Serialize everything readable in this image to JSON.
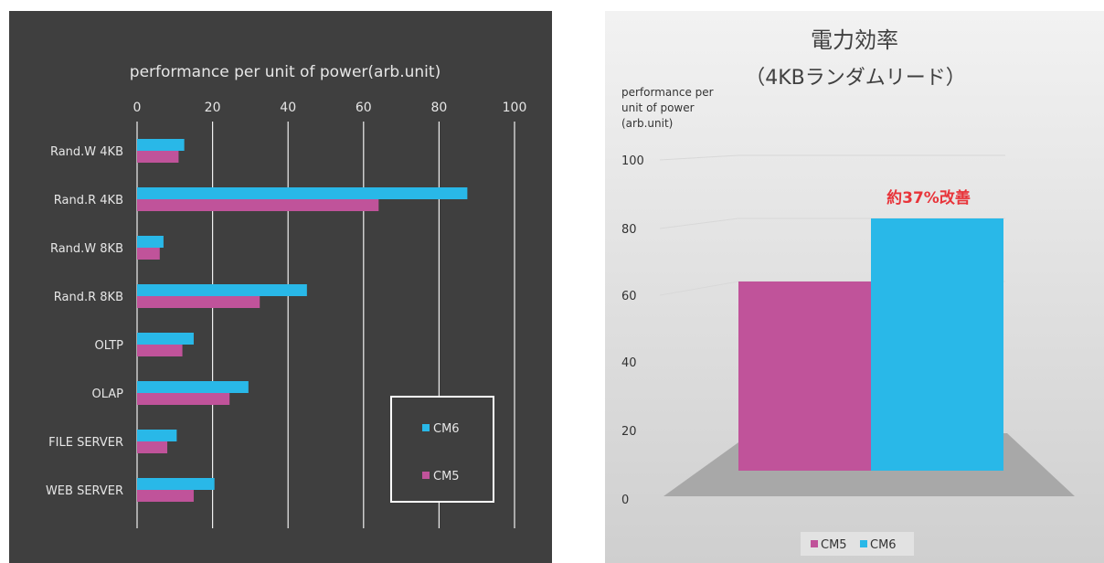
{
  "chart_data": [
    {
      "type": "bar",
      "orientation": "horizontal",
      "title": "performance per unit of power(arb.unit)",
      "categories": [
        "Rand.W 4KB",
        "Rand.R 4KB",
        "Rand.W 8KB",
        "Rand.R  8KB",
        "OLTP",
        "OLAP",
        "FILE SERVER",
        "WEB SERVER"
      ],
      "series": [
        {
          "name": "CM6",
          "color": "#29b8e8",
          "values": [
            12.5,
            87.5,
            7,
            45,
            15,
            29.5,
            10.5,
            20.5
          ]
        },
        {
          "name": "CM5",
          "color": "#c0539a",
          "values": [
            11,
            64,
            6,
            32.5,
            12,
            24.5,
            8,
            15
          ]
        }
      ],
      "xlim": [
        0,
        100
      ],
      "xticks": [
        "0",
        "20",
        "40",
        "60",
        "80",
        "100"
      ],
      "grid": true,
      "legend_position": "bottom-right",
      "background": "#3f3f3f"
    },
    {
      "type": "bar",
      "style": "3d",
      "title": "電力効率",
      "subtitle": "（4KBランダムリード）",
      "ylabel": "performance per unit of power (arb.unit)",
      "ylabel_lines": [
        "performance per",
        "unit of power",
        "(arb.unit)"
      ],
      "categories": [
        "4KBランダムリード"
      ],
      "series": [
        {
          "name": "CM5",
          "color": "#c0539a",
          "values": [
            60
          ]
        },
        {
          "name": "CM6",
          "color": "#29b8e8",
          "values": [
            80
          ]
        }
      ],
      "ylim": [
        0,
        100
      ],
      "yticks": [
        "100",
        "80",
        "60",
        "40",
        "20",
        "0"
      ],
      "annotation": "約37%改善",
      "annotation_color": "#e8343a",
      "legend_position": "bottom",
      "background": "#e6e6e6"
    }
  ]
}
